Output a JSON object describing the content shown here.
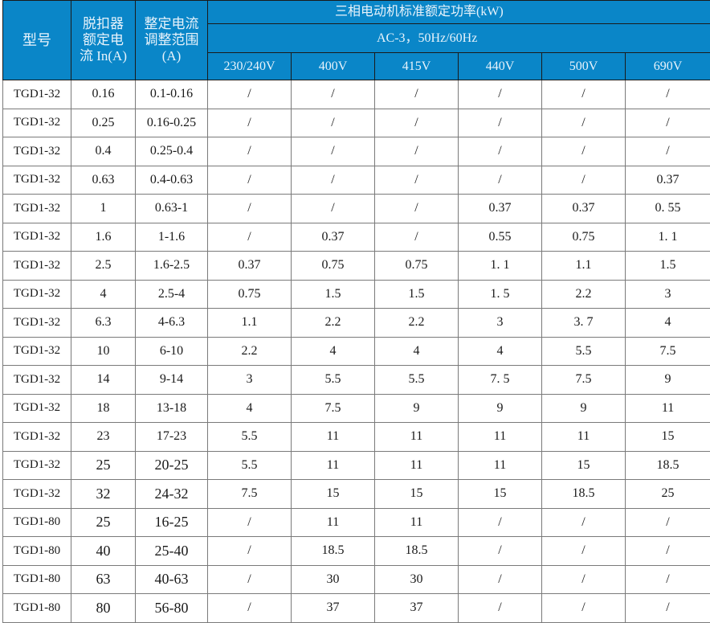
{
  "header": {
    "model": "型号",
    "rated_current": "脱扣器额定电流 In(A)",
    "setting_range": "整定电流调整范围(A)",
    "power_title": "三相电动机标准额定功率(kW)",
    "power_sub": "AC-3，50Hz/60Hz",
    "voltages": [
      "230/240V",
      "400V",
      "415V",
      "440V",
      "500V",
      "690V"
    ]
  },
  "colors": {
    "header_bg": "#0a86c8",
    "header_text": "#e8f3fb"
  },
  "rows": [
    [
      "TGD1-32",
      "0.16",
      "0.1-0.16",
      "/",
      "/",
      "/",
      "/",
      "/",
      "/"
    ],
    [
      "TGD1-32",
      "0.25",
      "0.16-0.25",
      "/",
      "/",
      "/",
      "/",
      "/",
      "/"
    ],
    [
      "TGD1-32",
      "0.4",
      "0.25-0.4",
      "/",
      "/",
      "/",
      "/",
      "/",
      "/"
    ],
    [
      "TGD1-32",
      "0.63",
      "0.4-0.63",
      "/",
      "/",
      "/",
      "/",
      "/",
      "0.37"
    ],
    [
      "TGD1-32",
      "1",
      "0.63-1",
      "/",
      "/",
      "/",
      "0.37",
      "0.37",
      "0. 55"
    ],
    [
      "TGD1-32",
      "1.6",
      "1-1.6",
      "/",
      "0.37",
      "/",
      "0.55",
      "0.75",
      "1. 1"
    ],
    [
      "TGD1-32",
      "2.5",
      "1.6-2.5",
      "0.37",
      "0.75",
      "0.75",
      "1. 1",
      "1.1",
      "1.5"
    ],
    [
      "TGD1-32",
      "4",
      "2.5-4",
      "0.75",
      "1.5",
      "1.5",
      "1. 5",
      "2.2",
      "3"
    ],
    [
      "TGD1-32",
      "6.3",
      "4-6.3",
      "1.1",
      "2.2",
      "2.2",
      "3",
      "3. 7",
      "4"
    ],
    [
      "TGD1-32",
      "10",
      "6-10",
      "2.2",
      "4",
      "4",
      "4",
      "5.5",
      "7.5"
    ],
    [
      "TGD1-32",
      "14",
      "9-14",
      "3",
      "5.5",
      "5.5",
      "7. 5",
      "7.5",
      "9"
    ],
    [
      "TGD1-32",
      "18",
      "13-18",
      "4",
      "7.5",
      "9",
      "9",
      "9",
      "11"
    ],
    [
      "TGD1-32",
      "23",
      "17-23",
      "5.5",
      "11",
      "11",
      "11",
      "11",
      "15"
    ],
    [
      "TGD1-32",
      "25",
      "20-25",
      "5.5",
      "11",
      "11",
      "11",
      "15",
      "18.5"
    ],
    [
      "TGD1-32",
      "32",
      "24-32",
      "7.5",
      "15",
      "15",
      "15",
      "18.5",
      "25"
    ],
    [
      "TGD1-80",
      "25",
      "16-25",
      "/",
      "11",
      "11",
      "/",
      "/",
      "/"
    ],
    [
      "TGD1-80",
      "40",
      "25-40",
      "/",
      "18.5",
      "18.5",
      "/",
      "/",
      "/"
    ],
    [
      "TGD1-80",
      "63",
      "40-63",
      "/",
      "30",
      "30",
      "/",
      "/",
      "/"
    ],
    [
      "TGD1-80",
      "80",
      "56-80",
      "/",
      "37",
      "37",
      "/",
      "/",
      "/"
    ]
  ]
}
